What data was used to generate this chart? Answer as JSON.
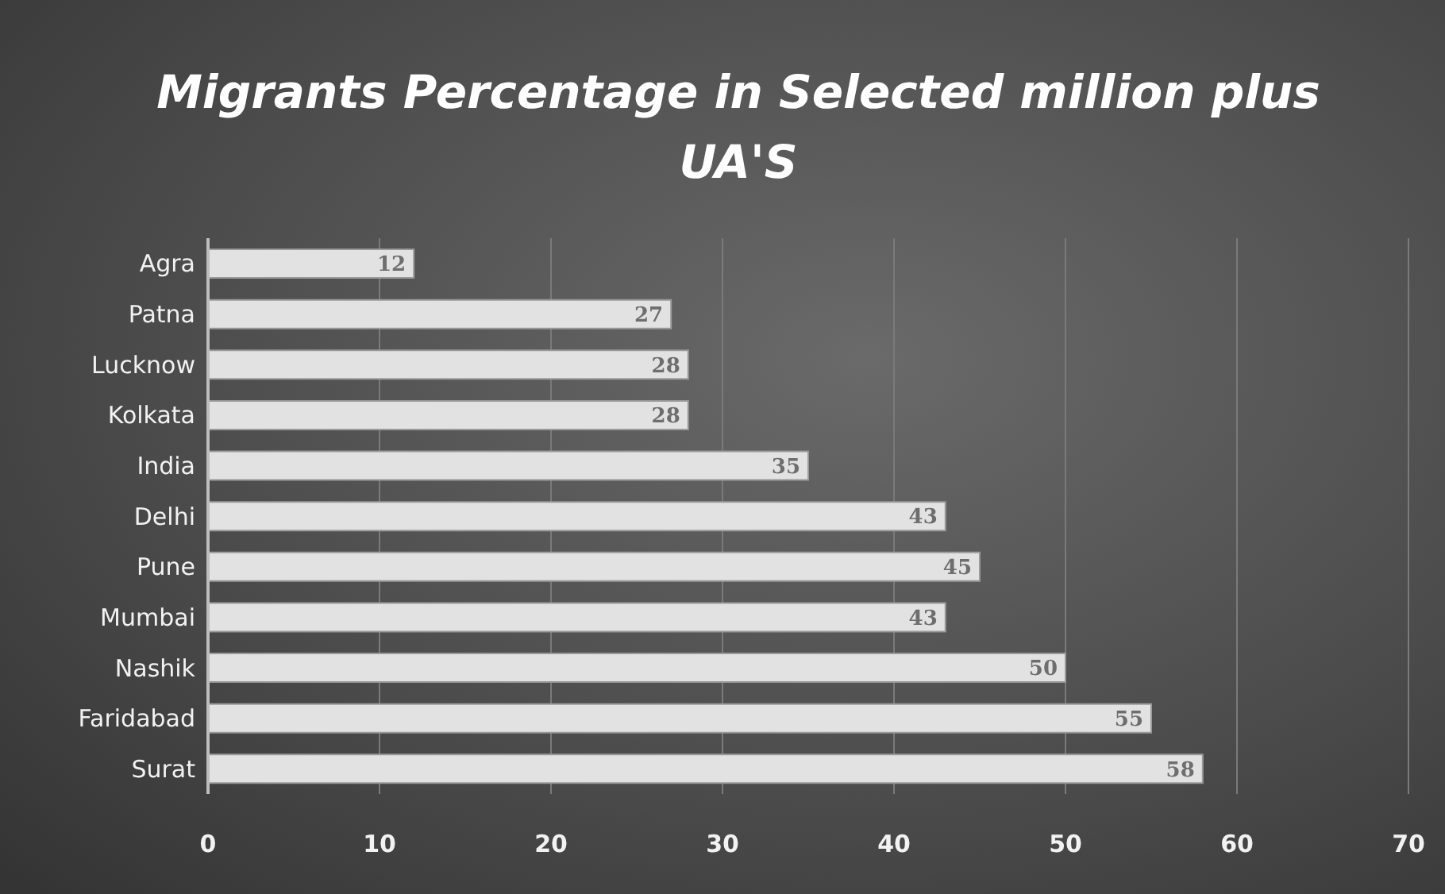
{
  "chart_data": {
    "type": "bar",
    "orientation": "horizontal",
    "title": "Migrants Percentage in Selected million plus UA'S",
    "categories": [
      "Agra",
      "Patna",
      "Lucknow",
      "Kolkata",
      "India",
      "Delhi",
      "Pune",
      "Mumbai",
      "Nashik",
      "Faridabad",
      "Surat"
    ],
    "values": [
      12,
      27,
      28,
      28,
      35,
      43,
      45,
      43,
      50,
      55,
      58
    ],
    "color": "#e2e2e2",
    "xlim": [
      0,
      70
    ],
    "xticks": [
      0,
      10,
      20,
      30,
      40,
      50,
      60,
      70
    ],
    "grid": "x",
    "data_labels": true
  }
}
